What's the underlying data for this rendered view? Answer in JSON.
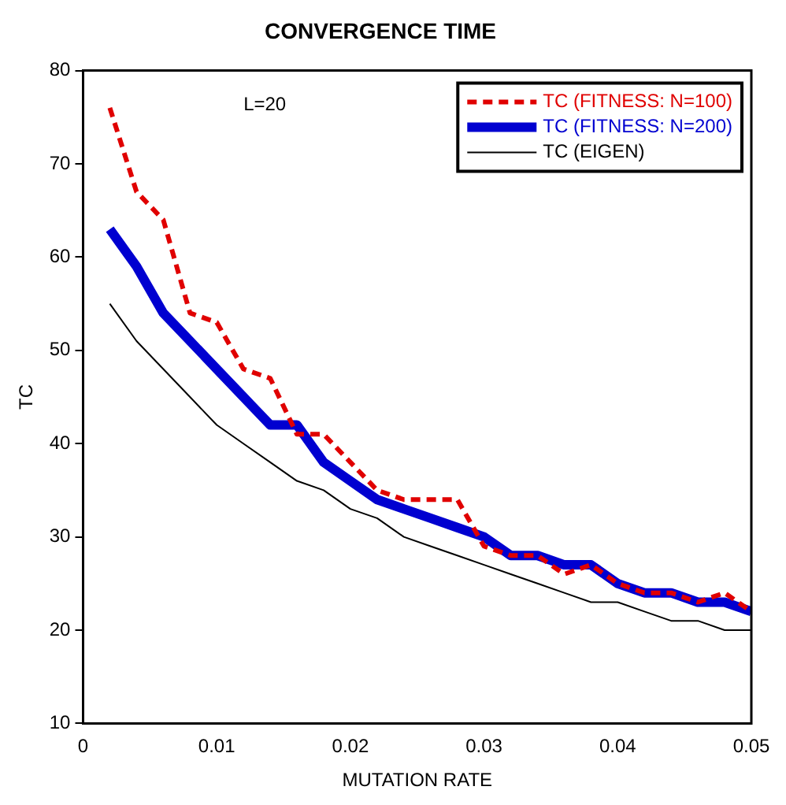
{
  "chart_data": {
    "type": "line",
    "title": "CONVERGENCE TIME",
    "xlabel": "MUTATION RATE",
    "ylabel": "TC",
    "annotations": [
      "L=20"
    ],
    "x": [
      0.002,
      0.004,
      0.006,
      0.008,
      0.01,
      0.012,
      0.014,
      0.016,
      0.018,
      0.02,
      0.022,
      0.024,
      0.026,
      0.028,
      0.03,
      0.032,
      0.034,
      0.036,
      0.038,
      0.04,
      0.042,
      0.044,
      0.046,
      0.048,
      0.05
    ],
    "series": [
      {
        "name": "TC (FITNESS: N=100)",
        "color": "#e00000",
        "line_style": "dashed",
        "values": [
          76,
          67,
          64,
          54,
          53,
          48,
          47,
          41,
          41,
          38,
          35,
          34,
          34,
          34,
          29,
          28,
          28,
          26,
          27,
          25,
          24,
          24,
          23,
          24,
          22
        ]
      },
      {
        "name": "TC (FITNESS: N=200)",
        "color": "#0000d0",
        "line_style": "solid",
        "values": [
          63,
          59,
          54,
          51,
          48,
          45,
          42,
          42,
          38,
          36,
          34,
          33,
          32,
          31,
          30,
          28,
          28,
          27,
          27,
          25,
          24,
          24,
          23,
          23,
          22
        ]
      },
      {
        "name": "TC (EIGEN)",
        "color": "#000000",
        "line_style": "solid",
        "values": [
          55,
          51,
          48,
          45,
          42,
          40,
          38,
          36,
          35,
          33,
          32,
          30,
          29,
          28,
          27,
          26,
          25,
          24,
          23,
          23,
          22,
          21,
          21,
          20,
          20
        ]
      }
    ],
    "xlim": [
      0,
      0.05
    ],
    "xticks": [
      0,
      0.01,
      0.02,
      0.03,
      0.04,
      0.05
    ],
    "ylim": [
      10,
      80
    ],
    "yticks": [
      10,
      20,
      30,
      40,
      50,
      60,
      70,
      80
    ],
    "grid": false,
    "legend": "top right",
    "marker": "none"
  }
}
